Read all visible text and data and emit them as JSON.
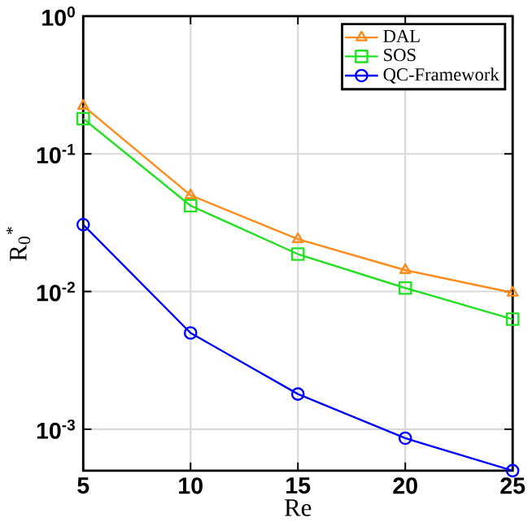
{
  "chart_data": {
    "type": "line",
    "xlabel": "Re",
    "ylabel": "R$_{0}$$^{*}$",
    "x": [
      5,
      10,
      15,
      20,
      25
    ],
    "xlim": [
      5,
      25
    ],
    "xticks": [
      5,
      10,
      15,
      20,
      25
    ],
    "ylim": [
      0.0005,
      1
    ],
    "yticks": [
      {
        "value": 0.001,
        "label": "10$^{-3}$"
      },
      {
        "value": 0.01,
        "label": "10$^{-2}$"
      },
      {
        "value": 0.1,
        "label": "10$^{-1}$"
      },
      {
        "value": 1,
        "label": "10$^{0}$"
      }
    ],
    "log": "y",
    "grid": true,
    "legend": "top right",
    "line_style": "solid",
    "series": [
      {
        "name": "DAL",
        "color": "#ff8c1a",
        "marker": "triangle",
        "values": [
          0.223,
          0.05,
          0.024,
          0.0143,
          0.0098
        ]
      },
      {
        "name": "SOS",
        "color": "#22e022",
        "marker": "square",
        "values": [
          0.18,
          0.042,
          0.0187,
          0.0106,
          0.0063
        ]
      },
      {
        "name": "QC-Framework",
        "color": "#0000ff",
        "marker": "circle",
        "values": [
          0.0306,
          0.005,
          0.0018,
          0.00086,
          0.0005
        ]
      }
    ]
  }
}
